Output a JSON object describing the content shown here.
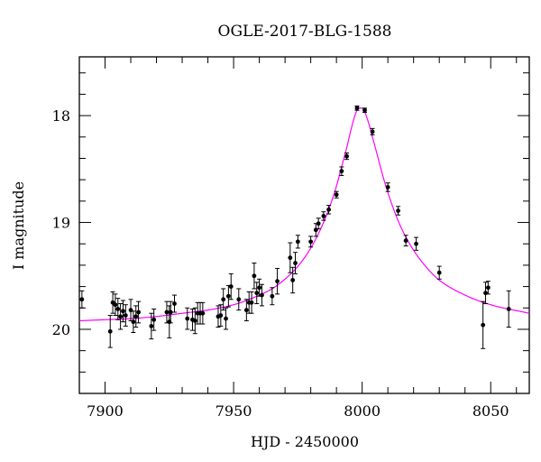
{
  "chart_data": {
    "type": "scatter",
    "title": "OGLE-2017-BLG-1588",
    "xlabel": "HJD - 2450000",
    "ylabel": "I magnitude",
    "xlim": [
      7890,
      8065
    ],
    "ylim": [
      20.6,
      17.45
    ],
    "y_inverted": true,
    "xticks": [
      7900,
      7950,
      8000,
      8050
    ],
    "xtick_labels": [
      "7900",
      "7950",
      "8000",
      "8050"
    ],
    "yticks": [
      18,
      19,
      20
    ],
    "ytick_labels": [
      "18",
      "19",
      "20"
    ],
    "grid": false,
    "colors": {
      "points": "#000000",
      "model": "#ff00ff",
      "frame": "#000000"
    },
    "model": {
      "name": "",
      "x": [
        7890,
        7900,
        7910,
        7920,
        7930,
        7940,
        7950,
        7955,
        7960,
        7965,
        7970,
        7975,
        7980,
        7985,
        7988,
        7990,
        7992,
        7994,
        7996,
        7998,
        8000,
        8002,
        8004,
        8006,
        8008,
        8010,
        8012,
        8015,
        8020,
        8025,
        8030,
        8040,
        8050,
        8065
      ],
      "y": [
        19.92,
        19.91,
        19.9,
        19.88,
        19.85,
        19.82,
        19.77,
        19.73,
        19.68,
        19.62,
        19.53,
        19.41,
        19.24,
        19.0,
        18.81,
        18.66,
        18.48,
        18.3,
        18.1,
        17.95,
        17.93,
        18.03,
        18.2,
        18.38,
        18.56,
        18.72,
        18.86,
        19.04,
        19.26,
        19.42,
        19.54,
        19.68,
        19.77,
        19.85
      ]
    },
    "series": [
      {
        "name": "",
        "x": [
          7891,
          7902,
          7903,
          7904,
          7905,
          7906,
          7907,
          7908,
          7910,
          7911,
          7912,
          7913,
          7918,
          7919,
          7924,
          7925,
          7925.5,
          7927,
          7932,
          7934,
          7935,
          7936,
          7937,
          7938,
          7944,
          7945,
          7946,
          7947,
          7948,
          7949,
          7952,
          7955,
          7956,
          7957,
          7958,
          7959,
          7960,
          7961,
          7965,
          7967,
          7972,
          7973,
          7974,
          7975,
          7980,
          7982,
          7983,
          7985,
          7987,
          7990,
          7992,
          7994,
          7998,
          8001,
          8004,
          8010,
          8014,
          8017,
          8021,
          8030,
          8047,
          8048,
          8049,
          8057
        ],
        "y": [
          19.72,
          20.02,
          19.75,
          19.77,
          19.81,
          19.88,
          19.83,
          19.87,
          19.82,
          19.93,
          19.88,
          19.84,
          19.97,
          19.91,
          19.84,
          19.93,
          19.84,
          19.76,
          19.9,
          19.91,
          19.92,
          19.85,
          19.85,
          19.85,
          19.88,
          19.87,
          19.72,
          19.9,
          19.69,
          19.6,
          19.72,
          19.82,
          19.75,
          19.75,
          19.5,
          19.66,
          19.61,
          19.68,
          19.69,
          19.55,
          19.33,
          19.54,
          19.38,
          19.18,
          19.18,
          19.07,
          19.01,
          18.94,
          18.88,
          18.74,
          18.52,
          18.38,
          17.93,
          17.95,
          18.15,
          18.67,
          18.89,
          19.17,
          19.2,
          19.47,
          19.96,
          19.66,
          19.61,
          19.81
        ],
        "err": [
          0.08,
          0.15,
          0.1,
          0.1,
          0.1,
          0.12,
          0.1,
          0.1,
          0.1,
          0.1,
          0.1,
          0.1,
          0.12,
          0.1,
          0.1,
          0.15,
          0.1,
          0.08,
          0.1,
          0.1,
          0.12,
          0.1,
          0.1,
          0.1,
          0.1,
          0.1,
          0.1,
          0.1,
          0.1,
          0.12,
          0.1,
          0.1,
          0.1,
          0.1,
          0.12,
          0.1,
          0.08,
          0.1,
          0.08,
          0.12,
          0.14,
          0.12,
          0.1,
          0.06,
          0.05,
          0.06,
          0.05,
          0.04,
          0.04,
          0.03,
          0.04,
          0.03,
          0.02,
          0.02,
          0.03,
          0.04,
          0.04,
          0.05,
          0.06,
          0.06,
          0.22,
          0.1,
          0.06,
          0.17
        ]
      }
    ]
  }
}
